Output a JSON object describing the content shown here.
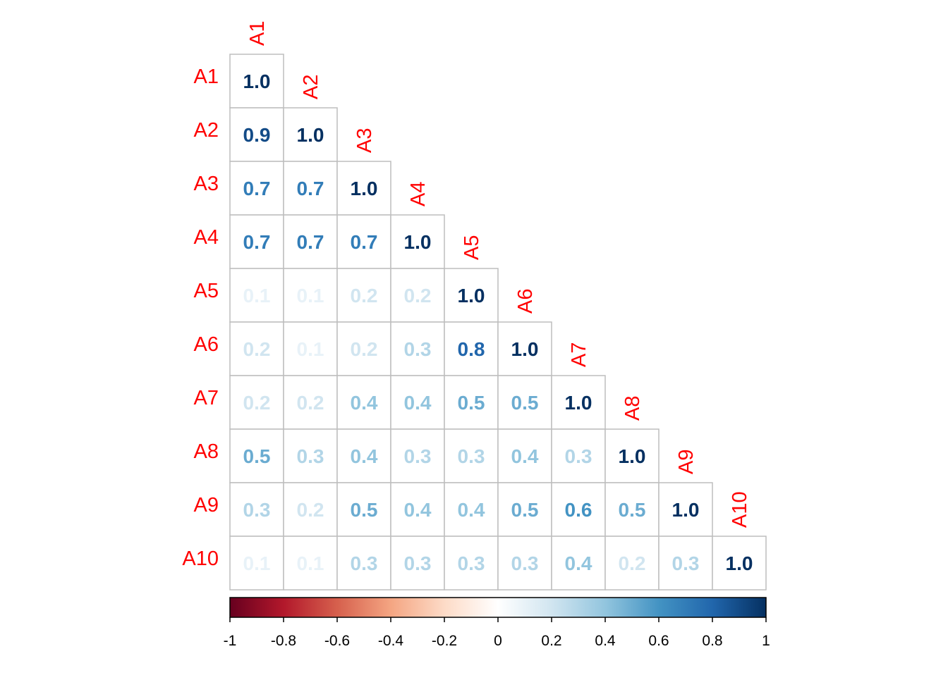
{
  "chart_data": {
    "type": "heatmap",
    "layout": "lower-triangle",
    "variables": [
      "A1",
      "A2",
      "A3",
      "A4",
      "A5",
      "A6",
      "A7",
      "A8",
      "A9",
      "A10"
    ],
    "values": [
      [
        "1.0"
      ],
      [
        "0.9",
        "1.0"
      ],
      [
        "0.7",
        "0.7",
        "1.0"
      ],
      [
        "0.7",
        "0.7",
        "0.7",
        "1.0"
      ],
      [
        "0.1",
        "0.1",
        "0.2",
        "0.2",
        "1.0"
      ],
      [
        "0.2",
        "0.1",
        "0.2",
        "0.3",
        "0.8",
        "1.0"
      ],
      [
        "0.2",
        "0.2",
        "0.4",
        "0.4",
        "0.5",
        "0.5",
        "1.0"
      ],
      [
        "0.5",
        "0.3",
        "0.4",
        "0.3",
        "0.3",
        "0.4",
        "0.3",
        "1.0"
      ],
      [
        "0.3",
        "0.2",
        "0.5",
        "0.4",
        "0.4",
        "0.5",
        "0.6",
        "0.5",
        "1.0"
      ],
      [
        "0.1",
        "0.1",
        "0.3",
        "0.3",
        "0.3",
        "0.3",
        "0.4",
        "0.2",
        "0.3",
        "1.0"
      ]
    ],
    "colorbar": {
      "range": [
        -1,
        1
      ],
      "ticks": [
        "-1",
        "-0.8",
        "-0.6",
        "-0.4",
        "-0.2",
        "0",
        "0.2",
        "0.4",
        "0.6",
        "0.8",
        "1"
      ],
      "palette": [
        "#67001F",
        "#B2182B",
        "#D6604D",
        "#F4A582",
        "#FDDBC7",
        "#FFFFFF",
        "#D1E5F0",
        "#92C5DE",
        "#4393C3",
        "#2166AC",
        "#053061"
      ]
    },
    "label_color": "#FF0000",
    "grid_color": "#BEBEBE"
  }
}
